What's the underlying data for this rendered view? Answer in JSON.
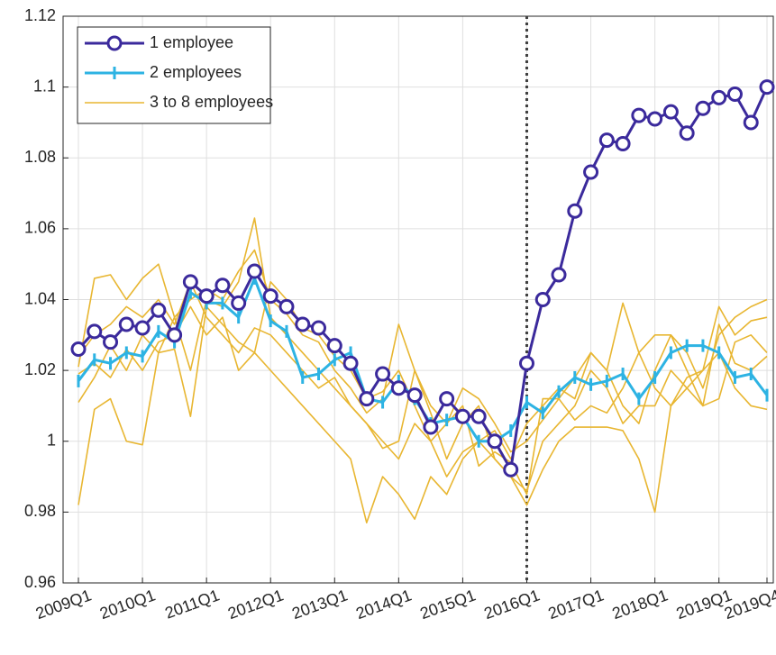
{
  "chart_data": {
    "type": "line",
    "categories": [
      "2009Q1",
      null,
      null,
      null,
      "2010Q1",
      null,
      null,
      null,
      "2011Q1",
      null,
      null,
      null,
      "2012Q1",
      null,
      null,
      null,
      "2013Q1",
      null,
      null,
      null,
      "2014Q1",
      null,
      null,
      null,
      "2015Q1",
      null,
      null,
      null,
      "2016Q1",
      null,
      null,
      null,
      "2017Q1",
      null,
      null,
      null,
      "2018Q1",
      null,
      null,
      null,
      "2019Q1",
      null,
      null,
      "2019Q4"
    ],
    "ylim": [
      0.96,
      1.12
    ],
    "yticks": [
      0.96,
      0.98,
      1,
      1.02,
      1.04,
      1.06,
      1.08,
      1.1,
      1.12
    ],
    "grid": true,
    "legend": "upper left",
    "reference_line": {
      "x": "2016Q1",
      "style": "dotted",
      "color": "#404040"
    },
    "series": [
      {
        "name": "1 employee",
        "color": "#3b2a9c",
        "marker": "o",
        "line_width": 3,
        "values": [
          1.026,
          1.031,
          1.028,
          1.033,
          1.032,
          1.037,
          1.03,
          1.045,
          1.041,
          1.044,
          1.039,
          1.048,
          1.041,
          1.038,
          1.033,
          1.032,
          1.027,
          1.022,
          1.012,
          1.019,
          1.015,
          1.013,
          1.004,
          1.012,
          1.007,
          1.007,
          1.0,
          0.992,
          1.022,
          1.04,
          1.047,
          1.065,
          1.076,
          1.085,
          1.084,
          1.092,
          1.091,
          1.093,
          1.087,
          1.094,
          1.097,
          1.098,
          1.09,
          1.1
        ]
      },
      {
        "name": "2 employees",
        "color": "#2db3e3",
        "marker": "|",
        "line_width": 3,
        "values": [
          1.017,
          1.023,
          1.022,
          1.025,
          1.024,
          1.031,
          1.028,
          1.042,
          1.039,
          1.039,
          1.035,
          1.046,
          1.034,
          1.031,
          1.018,
          1.019,
          1.023,
          1.025,
          1.012,
          1.011,
          1.017,
          1.012,
          1.005,
          1.006,
          1.007,
          1.0,
          1.0,
          1.003,
          1.011,
          1.008,
          1.014,
          1.018,
          1.016,
          1.017,
          1.019,
          1.012,
          1.018,
          1.025,
          1.027,
          1.027,
          1.025,
          1.018,
          1.019,
          1.013
        ]
      },
      {
        "name": "3 to 8 employees",
        "color": "#e8b631",
        "line_width": 1.6,
        "values": [
          1.021,
          1.046,
          1.047,
          1.04,
          1.046,
          1.05,
          1.035,
          1.04,
          1.043,
          1.04,
          1.048,
          1.054,
          1.04,
          1.036,
          1.03,
          1.028,
          1.02,
          1.015,
          1.008,
          1.012,
          1.033,
          1.02,
          1.01,
          1.005,
          1.015,
          1.012,
          1.005,
          0.997,
          1.0,
          1.006,
          1.012,
          1.018,
          1.025,
          1.02,
          1.01,
          1.005,
          1.02,
          1.03,
          1.025,
          1.015,
          1.03,
          1.035,
          1.038,
          1.04
        ]
      },
      {
        "color": "#e8b631",
        "line_width": 1.6,
        "values": [
          1.011,
          1.018,
          1.027,
          1.02,
          1.03,
          1.025,
          1.035,
          1.02,
          1.04,
          1.038,
          1.045,
          1.063,
          1.035,
          1.03,
          1.025,
          1.02,
          1.015,
          1.01,
          1.005,
          0.998,
          1.0,
          1.02,
          1.008,
          0.995,
          1.005,
          1.01,
          0.995,
          0.99,
          0.986,
          1.0,
          1.005,
          1.01,
          1.02,
          1.015,
          1.005,
          1.01,
          1.01,
          1.02,
          1.015,
          1.01,
          1.012,
          1.028,
          1.03,
          1.025
        ]
      },
      {
        "color": "#e8b631",
        "line_width": 1.6,
        "values": [
          0.982,
          1.009,
          1.012,
          1.0,
          0.999,
          1.025,
          1.026,
          1.007,
          1.038,
          1.033,
          1.028,
          1.025,
          1.02,
          1.015,
          1.01,
          1.005,
          1.0,
          0.995,
          0.977,
          0.99,
          0.985,
          0.978,
          0.99,
          0.985,
          0.995,
          1.0,
          0.995,
          0.99,
          0.982,
          0.992,
          1.0,
          1.004,
          1.004,
          1.004,
          1.003,
          0.995,
          0.98,
          1.01,
          1.015,
          1.02,
          1.025,
          1.015,
          1.01,
          1.009
        ]
      },
      {
        "color": "#e8b631",
        "line_width": 1.6,
        "values": [
          1.024,
          1.03,
          1.033,
          1.038,
          1.035,
          1.04,
          1.033,
          1.045,
          1.035,
          1.03,
          1.025,
          1.032,
          1.03,
          1.025,
          1.02,
          1.015,
          1.018,
          1.01,
          1.005,
          1.0,
          0.995,
          1.005,
          1.0,
          0.99,
          0.997,
          1.0,
          1.003,
          0.995,
          1.005,
          1.01,
          1.015,
          1.012,
          1.025,
          1.02,
          1.039,
          1.025,
          1.015,
          1.01,
          1.018,
          1.02,
          1.038,
          1.03,
          1.034,
          1.035
        ]
      },
      {
        "color": "#e8b631",
        "line_width": 1.6,
        "values": [
          1.019,
          1.022,
          1.018,
          1.026,
          1.02,
          1.028,
          1.03,
          1.038,
          1.03,
          1.035,
          1.02,
          1.025,
          1.045,
          1.04,
          1.032,
          1.03,
          1.024,
          1.02,
          1.012,
          1.014,
          1.02,
          1.01,
          1.0,
          1.005,
          1.01,
          0.993,
          0.997,
          0.994,
          0.985,
          1.012,
          1.012,
          1.006,
          1.01,
          1.008,
          1.015,
          1.025,
          1.03,
          1.03,
          1.02,
          1.01,
          1.033,
          1.022,
          1.02,
          1.024
        ]
      }
    ]
  }
}
